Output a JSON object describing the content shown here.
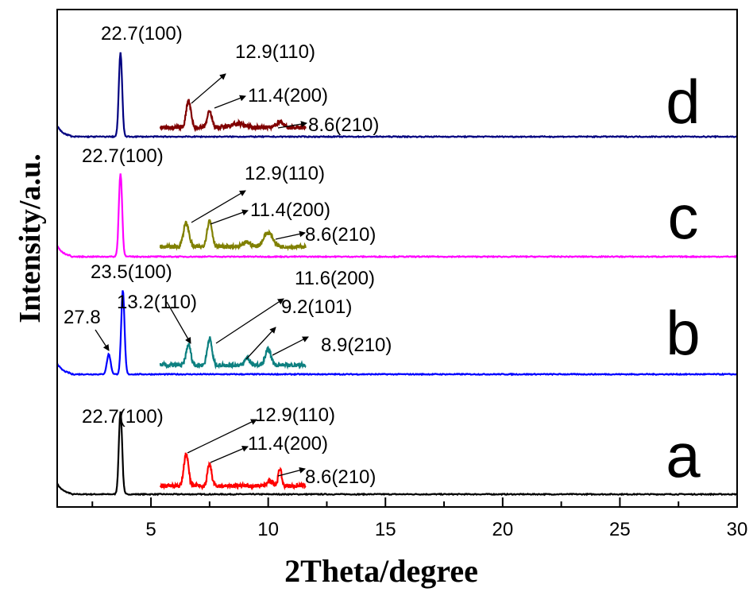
{
  "chart_data": {
    "type": "line",
    "xlabel": "2Theta/degree",
    "ylabel": "Intensity/a.u.",
    "xlim": [
      1,
      30
    ],
    "x_ticks": [
      5,
      10,
      15,
      20,
      25,
      30
    ],
    "y_ticks_shown": false,
    "grid": false,
    "legend": "none",
    "series": [
      {
        "label": "a",
        "color": "#000000",
        "peaks_2theta": [
          3.7
        ],
        "annotation": {
          "text": "22.7(100)"
        },
        "inset": {
          "color": "#ff0000",
          "x_range": [
            5.4,
            11.6
          ],
          "peaks_2theta": [
            6.5,
            7.5,
            10.5
          ],
          "annotations": [
            {
              "text": "12.9(110)",
              "arrow_from": 6.5
            },
            {
              "text": "11.4(200)",
              "arrow_from": 7.5
            },
            {
              "text": "8.6(210)",
              "arrow_from": 10.5
            }
          ]
        }
      },
      {
        "label": "b",
        "color": "#0000ff",
        "peaks_2theta": [
          3.2,
          3.8
        ],
        "annotations_main": [
          {
            "text": "23.5(100)"
          },
          {
            "text": "27.8",
            "arrow_from": 3.2
          }
        ],
        "inset": {
          "color": "#0d8080",
          "x_range": [
            5.4,
            11.6
          ],
          "peaks_2theta": [
            6.6,
            7.5,
            9.1,
            10.0
          ],
          "annotations": [
            {
              "text": "13.2(110)",
              "arrow_from": 6.6
            },
            {
              "text": "11.6(200)",
              "arrow_from": 7.5
            },
            {
              "text": "9.2(101)",
              "arrow_from": 9.1
            },
            {
              "text": "8.9(210)",
              "arrow_from": 10.0
            }
          ]
        }
      },
      {
        "label": "c",
        "color": "#ff00ff",
        "peaks_2theta": [
          3.7
        ],
        "annotation": {
          "text": "22.7(100)"
        },
        "inset": {
          "color": "#808000",
          "x_range": [
            5.4,
            11.6
          ],
          "peaks_2theta": [
            6.5,
            7.5,
            10.0
          ],
          "annotations": [
            {
              "text": "12.9(110)",
              "arrow_from": 6.5
            },
            {
              "text": "11.4(200)",
              "arrow_from": 7.5
            },
            {
              "text": "8.6(210)",
              "arrow_from": 10.0
            }
          ]
        }
      },
      {
        "label": "d",
        "color": "#000080",
        "peaks_2theta": [
          3.7
        ],
        "annotation": {
          "text": "22.7(100)"
        },
        "inset": {
          "color": "#800000",
          "x_range": [
            5.4,
            11.6
          ],
          "peaks_2theta": [
            6.6,
            7.5,
            10.5
          ],
          "annotations": [
            {
              "text": "12.9(110)",
              "arrow_from": 6.6
            },
            {
              "text": "11.4(200)",
              "arrow_from": 7.5
            },
            {
              "text": "8.6(210)",
              "arrow_from": 10.5
            }
          ]
        }
      }
    ]
  }
}
